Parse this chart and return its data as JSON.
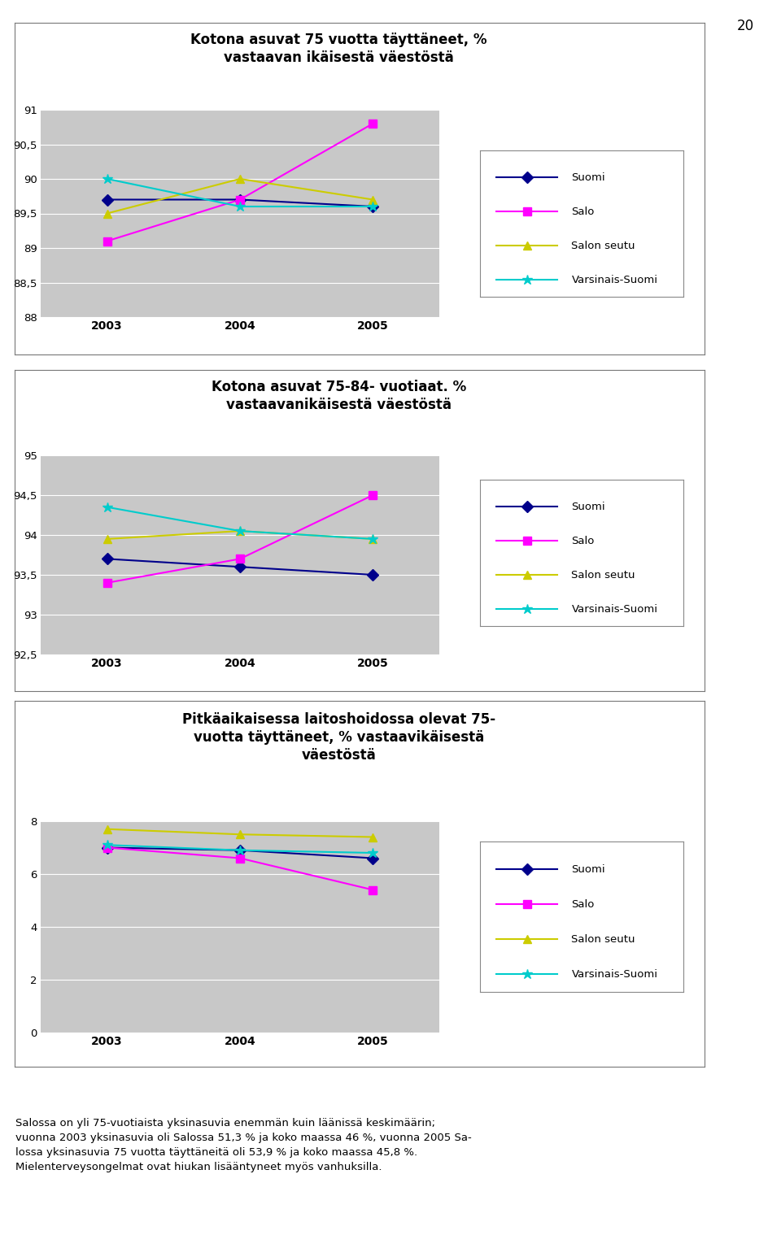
{
  "years": [
    2003,
    2004,
    2005
  ],
  "chart1": {
    "title_line1": "Kotona asuvat 75 vuotta täyttäneet, %",
    "title_line2": "vastaavan ikäisestä väestöstä",
    "suomi": [
      89.7,
      89.7,
      89.6
    ],
    "salo": [
      89.1,
      89.7,
      90.8
    ],
    "salon_seutu": [
      89.5,
      90.0,
      89.7
    ],
    "varsinais_suomi": [
      90.0,
      89.6,
      89.6
    ],
    "ylim": [
      88,
      91
    ],
    "yticks": [
      88,
      88.5,
      89,
      89.5,
      90,
      90.5,
      91
    ],
    "ytick_labels": [
      "88",
      "88,5",
      "89",
      "89,5",
      "90",
      "90,5",
      "91"
    ]
  },
  "chart2": {
    "title_line1": "Kotona asuvat 75-84- vuotiaat. %",
    "title_line2": "vastaavanikäisestä väestöstä",
    "suomi": [
      93.7,
      93.6,
      93.5
    ],
    "salo": [
      93.4,
      93.7,
      94.5
    ],
    "salon_seutu": [
      93.95,
      94.05,
      93.95
    ],
    "varsinais_suomi": [
      94.35,
      94.05,
      93.95
    ],
    "ylim": [
      92.5,
      95
    ],
    "yticks": [
      92.5,
      93,
      93.5,
      94,
      94.5,
      95
    ],
    "ytick_labels": [
      "92,5",
      "93",
      "93,5",
      "94",
      "94,5",
      "95"
    ]
  },
  "chart3": {
    "title_line1": "Pitkäaikaisessa laitoshoidossa olevat 75-",
    "title_line2": "vuotta täyttäneet, % vastaavikäisestä",
    "title_line3": "väestöstä",
    "suomi": [
      7.0,
      6.9,
      6.6
    ],
    "salo": [
      7.0,
      6.6,
      5.4
    ],
    "salon_seutu": [
      7.7,
      7.5,
      7.4
    ],
    "varsinais_suomi": [
      7.1,
      6.9,
      6.8
    ],
    "ylim": [
      0,
      8
    ],
    "yticks": [
      0,
      2,
      4,
      6,
      8
    ],
    "ytick_labels": [
      "0",
      "2",
      "4",
      "6",
      "8"
    ]
  },
  "series_keys": [
    "suomi",
    "salo",
    "salon_seutu",
    "varsinais_suomi"
  ],
  "markers": [
    "D",
    "s",
    "^",
    "*"
  ],
  "legend_labels": [
    "Suomi",
    "Salo",
    "Salon seutu",
    "Varsinais-Suomi"
  ],
  "colors": {
    "suomi": "#00008B",
    "salo": "#FF00FF",
    "salon_seutu": "#CCCC00",
    "varsinais_suomi": "#00CCCC"
  },
  "footer_text": "Salossa on yli 75-vuotiaista yksinasuvia enemmän kuin läänissä keskimäärin;\nvuonna 2003 yksinasuvia oli Salossa 51,3 % ja koko maassa 46 %, vuonna 2005 Sa-\nlossa yksinasuvia 75 vuotta täyttäneitä oli 53,9 % ja koko maassa 45,8 %.\nMielenterveysongelmat ovat hiukan lisääntyneet myös vanhuksilla.",
  "page_number": "20",
  "plot_bg": "#C8C8C8",
  "white": "#FFFFFF",
  "grid_color": "#FFFFFF"
}
